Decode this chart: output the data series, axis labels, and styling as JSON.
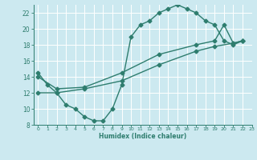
{
  "line1_x": [
    0,
    1,
    2,
    3,
    4,
    5,
    6,
    7,
    8,
    9,
    10,
    11,
    12,
    13,
    14,
    15,
    16,
    17,
    18,
    19,
    20,
    21,
    22
  ],
  "line1_y": [
    14.5,
    13.0,
    12.0,
    10.5,
    10.0,
    9.0,
    8.5,
    8.5,
    10.0,
    13.0,
    19.0,
    20.5,
    21.0,
    22.0,
    22.5,
    23.0,
    22.5,
    22.0,
    21.0,
    20.5,
    18.5,
    18.0,
    18.5
  ],
  "line2_x": [
    0,
    2,
    5,
    9,
    13,
    17,
    19,
    20,
    21,
    22
  ],
  "line2_y": [
    14.0,
    12.5,
    12.7,
    14.5,
    16.8,
    18.0,
    18.5,
    20.5,
    18.2,
    18.5
  ],
  "line3_x": [
    0,
    2,
    5,
    9,
    13,
    17,
    19,
    21,
    22
  ],
  "line3_y": [
    12.0,
    12.0,
    12.5,
    13.5,
    15.5,
    17.2,
    17.8,
    18.2,
    18.5
  ],
  "line_color": "#2e7d6e",
  "bg_color": "#cce9f0",
  "grid_color": "#b8d8e0",
  "xlabel": "Humidex (Indice chaleur)",
  "ylim": [
    8,
    23
  ],
  "xlim": [
    -0.5,
    23
  ],
  "yticks": [
    8,
    10,
    12,
    14,
    16,
    18,
    20,
    22
  ],
  "xticks": [
    0,
    1,
    2,
    3,
    4,
    5,
    6,
    7,
    8,
    9,
    10,
    11,
    12,
    13,
    14,
    15,
    16,
    17,
    18,
    19,
    20,
    21,
    22,
    23
  ],
  "marker": "D",
  "marker_size": 2.5,
  "line_width": 1.0
}
